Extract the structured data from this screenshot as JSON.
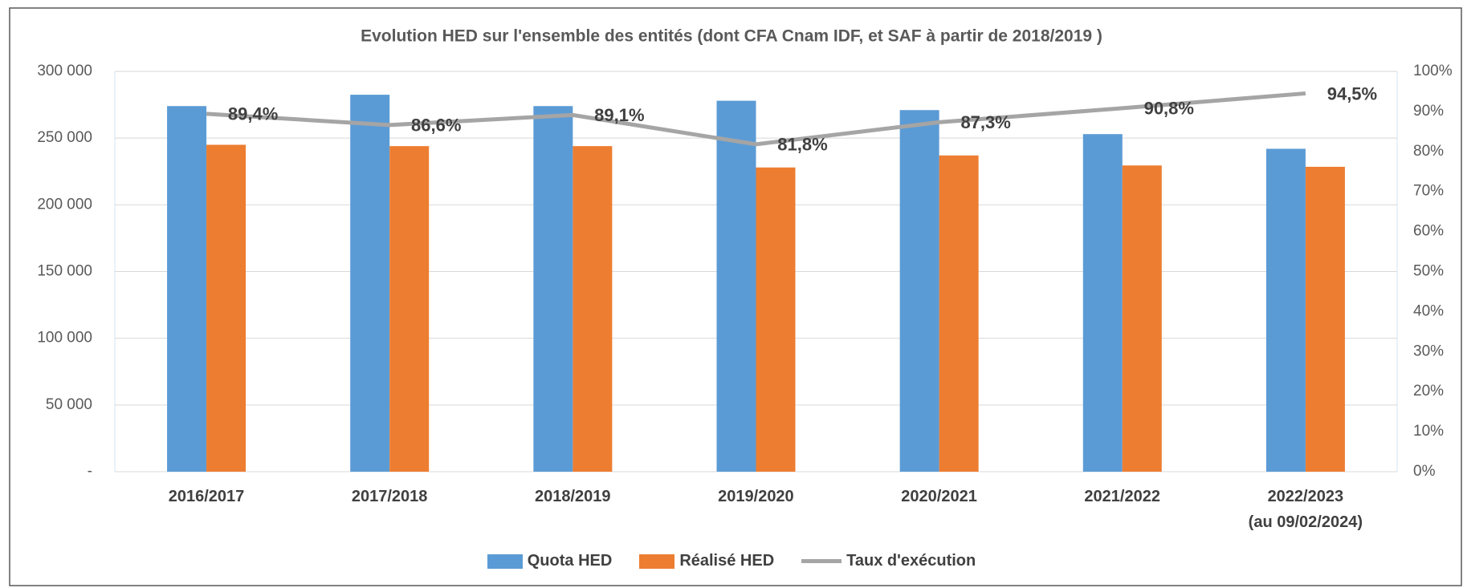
{
  "chart_data": {
    "type": "bar",
    "title": "Evolution HED sur l'ensemble des entités (dont CFA Cnam IDF, et SAF à partir de 2018/2019 )",
    "categories": [
      "2016/2017",
      "2017/2018",
      "2018/2019",
      "2019/2020",
      "2020/2021",
      "2021/2022",
      "2022/2023\n(au 09/02/2024)"
    ],
    "series": [
      {
        "name": "Quota HED",
        "type": "bar",
        "color": "#5b9bd5",
        "values": [
          274000,
          282500,
          274000,
          278000,
          271000,
          253000,
          242000
        ]
      },
      {
        "name": "Réalisé HED",
        "type": "bar",
        "color": "#ed7d31",
        "values": [
          245000,
          244000,
          244000,
          228000,
          237000,
          229500,
          228500
        ]
      },
      {
        "name": "Taux d'exécution",
        "type": "line",
        "axis": "y2",
        "color": "#a5a5a5",
        "values": [
          89.4,
          86.6,
          89.1,
          81.8,
          87.3,
          90.8,
          94.5
        ],
        "value_labels": [
          "89,4%",
          "86,6%",
          "89,1%",
          "81,8%",
          "87,3%",
          "90,8%",
          "94,5%"
        ]
      }
    ],
    "ylim": [
      0,
      300000
    ],
    "yticks": [
      {
        "value": 0,
        "label": "-"
      },
      {
        "value": 50000,
        "label": "50 000"
      },
      {
        "value": 100000,
        "label": "100 000"
      },
      {
        "value": 150000,
        "label": "150 000"
      },
      {
        "value": 200000,
        "label": "200 000"
      },
      {
        "value": 250000,
        "label": "250 000"
      },
      {
        "value": 300000,
        "label": "300 000"
      }
    ],
    "y2lim": [
      0,
      100
    ],
    "y2ticks": [
      {
        "value": 0,
        "label": "0%"
      },
      {
        "value": 10,
        "label": "10%"
      },
      {
        "value": 20,
        "label": "20%"
      },
      {
        "value": 30,
        "label": "30%"
      },
      {
        "value": 40,
        "label": "40%"
      },
      {
        "value": 50,
        "label": "50%"
      },
      {
        "value": 60,
        "label": "60%"
      },
      {
        "value": 70,
        "label": "70%"
      },
      {
        "value": 80,
        "label": "80%"
      },
      {
        "value": 90,
        "label": "90%"
      },
      {
        "value": 100,
        "label": "100%"
      }
    ],
    "grid": true,
    "legend": "bottom"
  }
}
